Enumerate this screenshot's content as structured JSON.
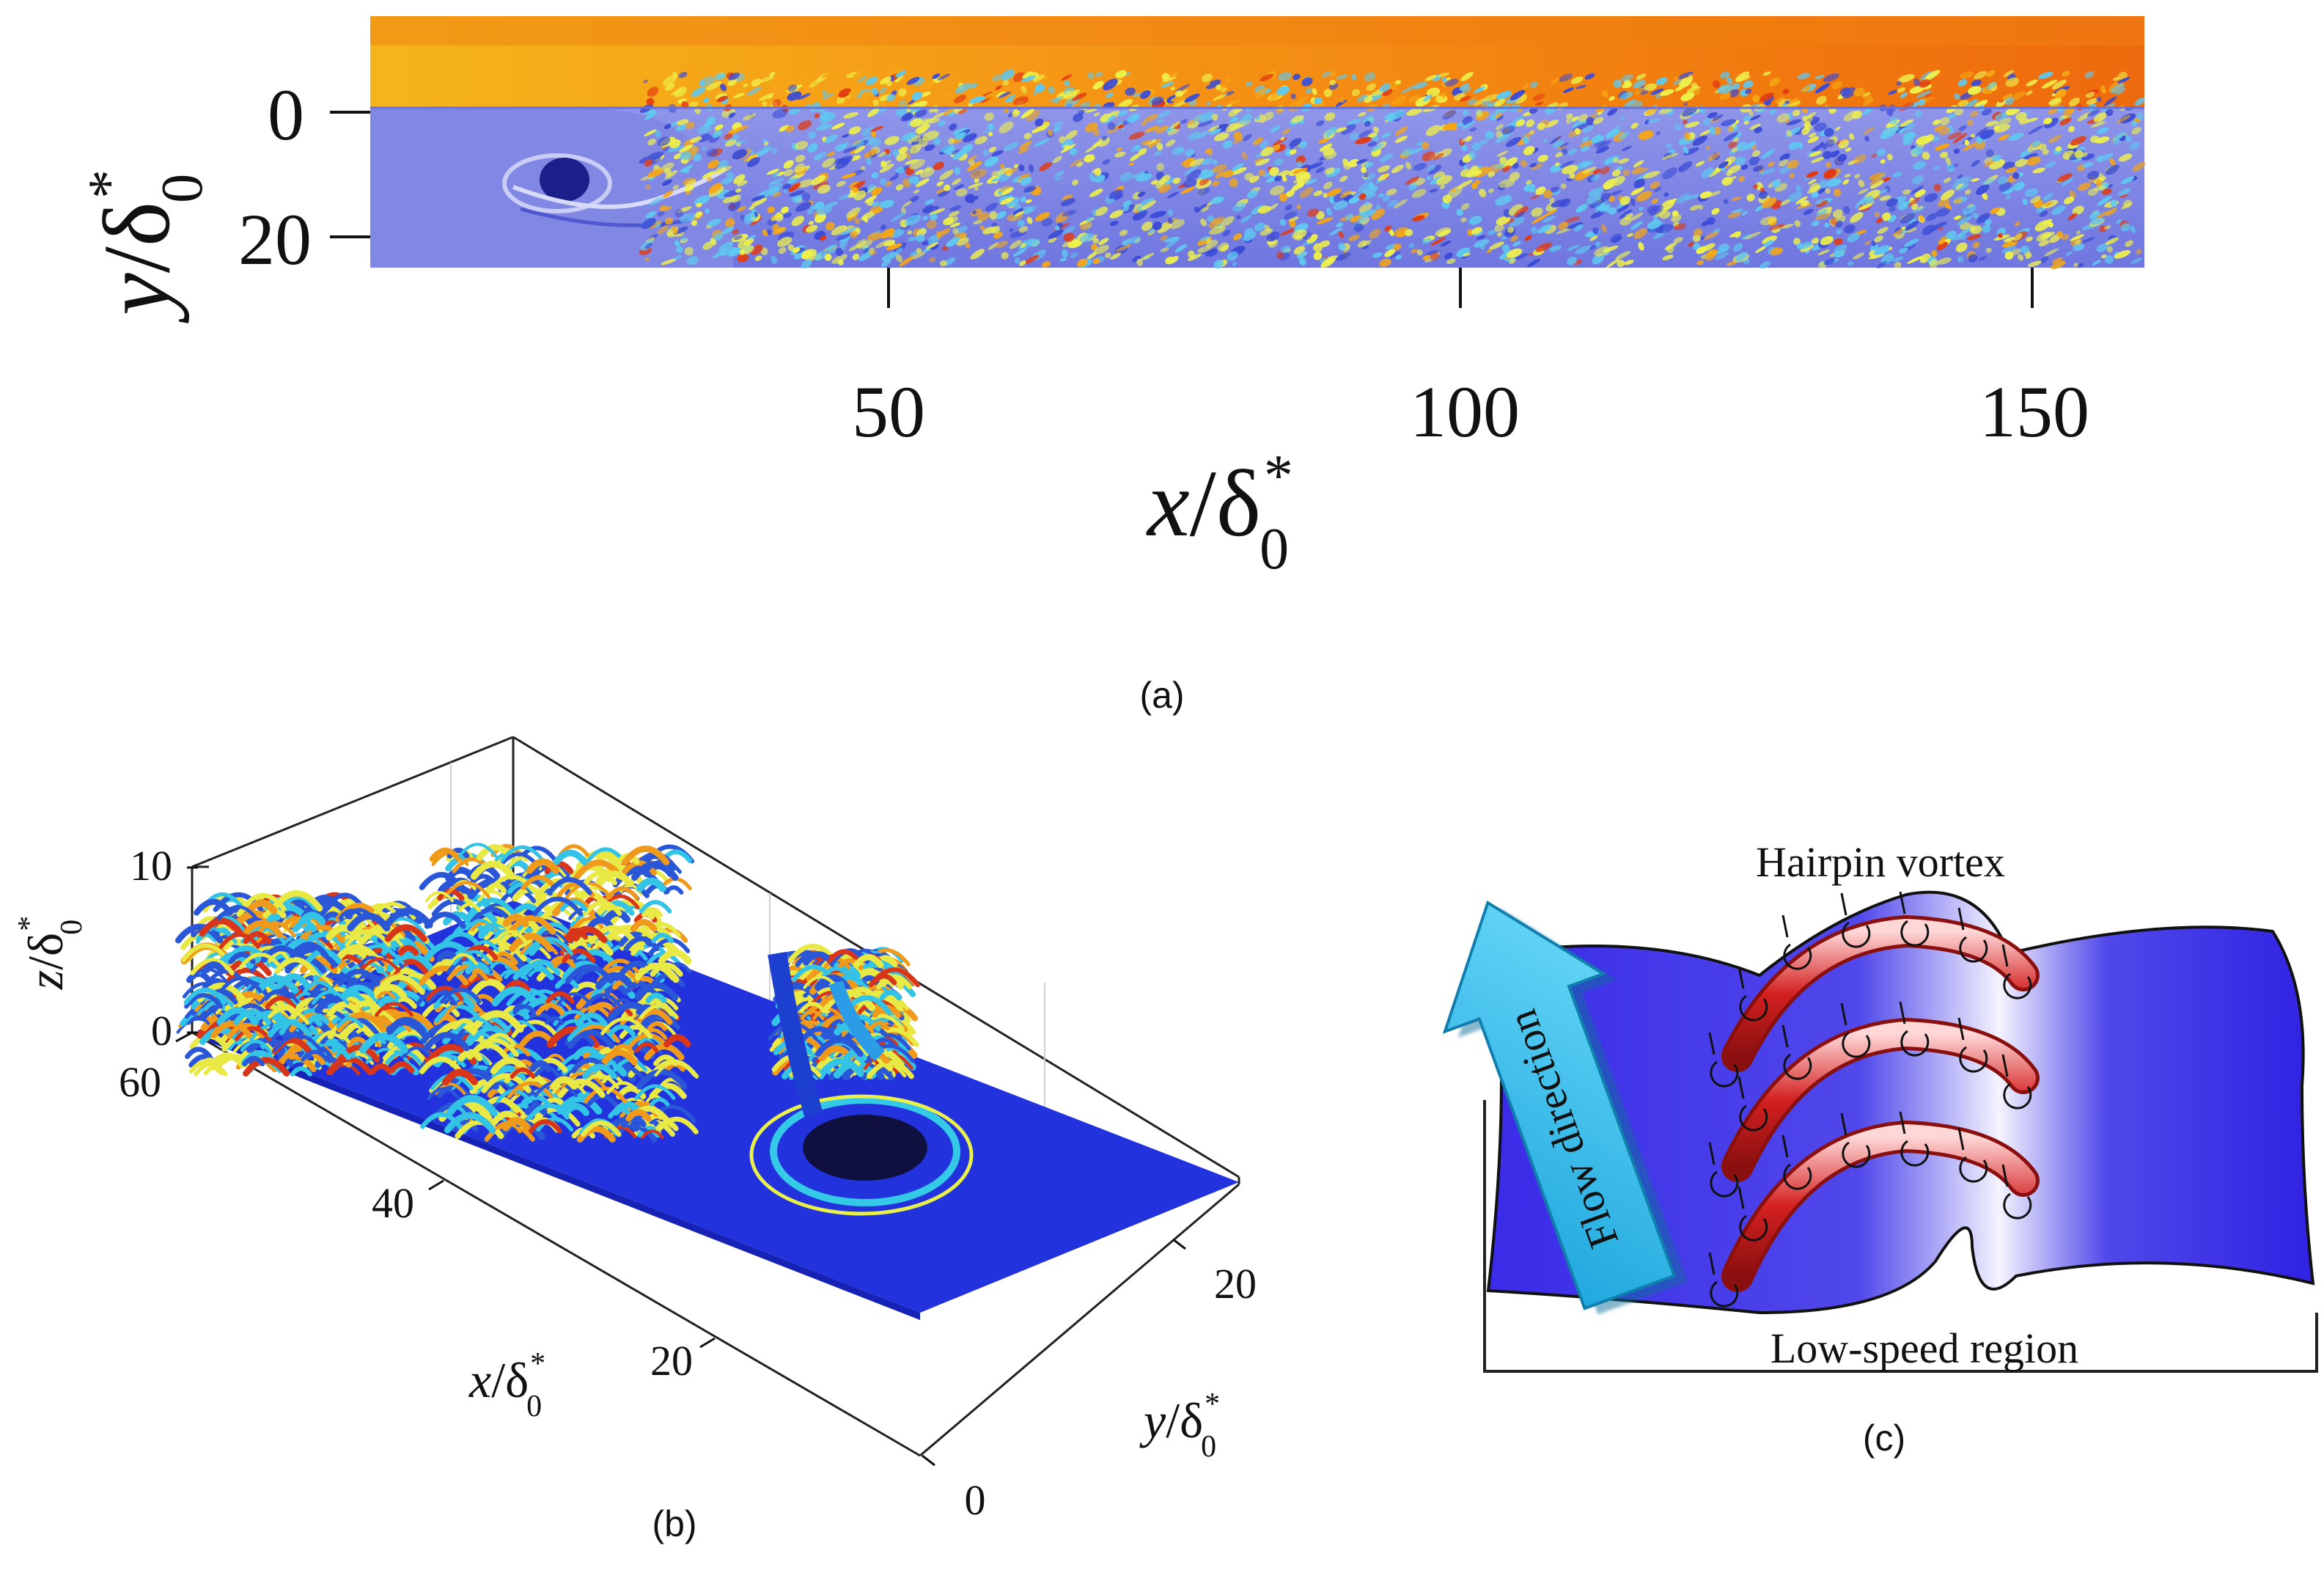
{
  "panel_a": {
    "caption": "(a)",
    "x_ticks": [
      "50",
      "100",
      "150"
    ],
    "y_ticks": [
      "0",
      "20"
    ],
    "x_label_var": "x",
    "x_label_sub": "0",
    "x_label_sup": "*",
    "y_label_var": "y",
    "y_label_sub": "0",
    "y_label_sup": "*",
    "colormap": [
      "#3b4bd6",
      "#5fc8f0",
      "#eef04a",
      "#f5a614",
      "#e23a12"
    ]
  },
  "panel_b": {
    "caption": "(b)",
    "z_ticks": [
      "10",
      "0"
    ],
    "x_ticks": [
      "60",
      "40",
      "20"
    ],
    "y_ticks": [
      "0",
      "20"
    ],
    "z_label_var": "z",
    "x_label_var": "x",
    "y_label_var": "y",
    "sub": "0",
    "sup": "*",
    "surface_color": "#2233dd"
  },
  "panel_c": {
    "caption": "(c)",
    "hairpin_label": "Hairpin vortex",
    "flow_label": "Flow direction",
    "region_label": "Low-speed region",
    "hairpin_color": "#d42020",
    "region_color": "#3a2cf0",
    "arrow_color": "#22b8e8"
  }
}
